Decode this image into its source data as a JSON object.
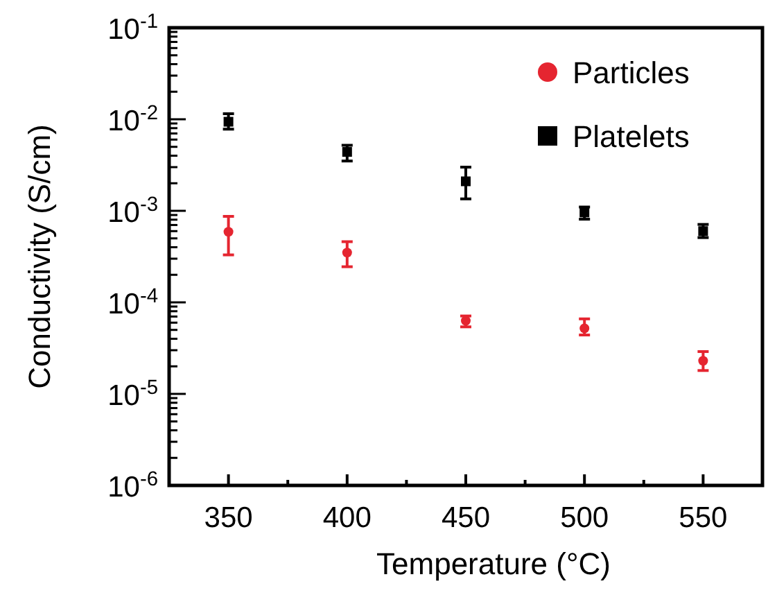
{
  "chart_data": {
    "type": "scatter",
    "xlabel": "Temperature (°C)",
    "ylabel": "Conductivity (S/cm)",
    "log": "y",
    "xlim": [
      325,
      575
    ],
    "xticks": [
      350,
      {
        "value": 375,
        "label": null
      },
      400,
      {
        "value": 425,
        "label": null
      },
      450,
      {
        "value": 475,
        "label": null
      },
      500,
      {
        "value": 525,
        "label": null
      },
      550
    ],
    "ylim": [
      1e-06,
      0.1
    ],
    "yticks": [
      {
        "value": 1e-06,
        "label": "10$^{-6}$"
      },
      {
        "value": 2e-06,
        "label": null
      },
      {
        "value": 3e-06,
        "label": null
      },
      {
        "value": 4e-06,
        "label": null
      },
      {
        "value": 5e-06,
        "label": null
      },
      {
        "value": 6e-06,
        "label": null
      },
      {
        "value": 7e-06,
        "label": null
      },
      {
        "value": 8e-06,
        "label": null
      },
      {
        "value": 9e-06,
        "label": null
      },
      {
        "value": 1e-05,
        "label": "10$^{-5}$"
      },
      {
        "value": 2e-05,
        "label": null
      },
      {
        "value": 3e-05,
        "label": null
      },
      {
        "value": 4e-05,
        "label": null
      },
      {
        "value": 5e-05,
        "label": null
      },
      {
        "value": 6e-05,
        "label": null
      },
      {
        "value": 7e-05,
        "label": null
      },
      {
        "value": 8e-05,
        "label": null
      },
      {
        "value": 9e-05,
        "label": null
      },
      {
        "value": 0.0001,
        "label": "10$^{-4}$"
      },
      {
        "value": 0.0002,
        "label": null
      },
      {
        "value": 0.0003,
        "label": null
      },
      {
        "value": 0.0004,
        "label": null
      },
      {
        "value": 0.0005,
        "label": null
      },
      {
        "value": 0.0006,
        "label": null
      },
      {
        "value": 0.0007,
        "label": null
      },
      {
        "value": 0.0008,
        "label": null
      },
      {
        "value": 0.0009,
        "label": null
      },
      {
        "value": 0.001,
        "label": "10$^{-3}$"
      },
      {
        "value": 0.002,
        "label": null
      },
      {
        "value": 0.003,
        "label": null
      },
      {
        "value": 0.004,
        "label": null
      },
      {
        "value": 0.005,
        "label": null
      },
      {
        "value": 0.006,
        "label": null
      },
      {
        "value": 0.007,
        "label": null
      },
      {
        "value": 0.008,
        "label": null
      },
      {
        "value": 0.009,
        "label": null
      },
      {
        "value": 0.01,
        "label": "10$^{-2}$"
      },
      {
        "value": 0.02,
        "label": null
      },
      {
        "value": 0.03,
        "label": null
      },
      {
        "value": 0.04,
        "label": null
      },
      {
        "value": 0.05,
        "label": null
      },
      {
        "value": 0.06,
        "label": null
      },
      {
        "value": 0.07,
        "label": null
      },
      {
        "value": 0.08,
        "label": null
      },
      {
        "value": 0.09,
        "label": null
      },
      {
        "value": 0.1,
        "label": "10$^{-1}$"
      }
    ],
    "x": [
      350,
      400,
      450,
      500,
      550
    ],
    "grid": false,
    "legend": "top right",
    "series": [
      {
        "name": "Particles",
        "color": "#e52530",
        "marker": "circle",
        "values": [
          0.00059,
          0.00035,
          6.3e-05,
          5.2e-05,
          2.3e-05
        ],
        "errors": [
          [
            0.00033,
            0.00087
          ],
          [
            0.000245,
            0.00046
          ],
          [
            5.4e-05,
            7.1e-05
          ],
          [
            4.4e-05,
            6.6e-05
          ],
          [
            1.8e-05,
            2.9e-05
          ]
        ]
      },
      {
        "name": "Platelets",
        "color": "#000000",
        "marker": "square",
        "values": [
          0.0094,
          0.0044,
          0.0021,
          0.00096,
          0.0006
        ],
        "errors": [
          [
            0.0078,
            0.0115
          ],
          [
            0.0035,
            0.0052
          ],
          [
            0.00135,
            0.003
          ],
          [
            0.00081,
            0.0011
          ],
          [
            0.00051,
            0.00071
          ]
        ]
      }
    ]
  }
}
